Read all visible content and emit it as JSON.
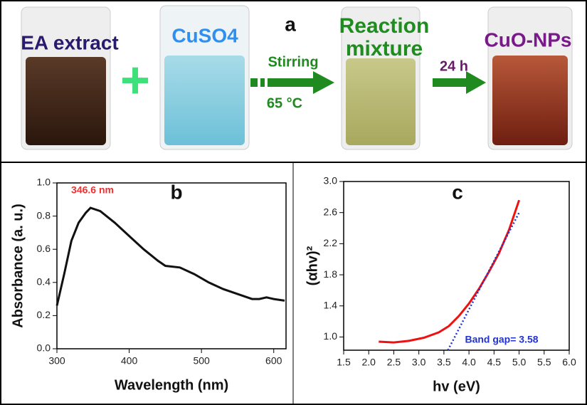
{
  "panel_a": {
    "title": "a",
    "labels": [
      "EA extract",
      "CuSO4",
      "Reaction",
      "mixture",
      "CuO-NPs"
    ],
    "plus": "+",
    "arrow1_top": "Stirring",
    "arrow1_bottom": "65 °C",
    "arrow2_top": "24 h"
  },
  "chart_data": [
    {
      "type": "line",
      "title": "b",
      "x_label": "Wavelength (nm)",
      "y_label": "Absorbance (a. u.)",
      "annotation": "346.6 nm",
      "annotation_color": "#f03030",
      "x": [
        300,
        310,
        320,
        330,
        340,
        346.6,
        360,
        380,
        400,
        420,
        440,
        450,
        470,
        490,
        510,
        530,
        550,
        570,
        580,
        590,
        600,
        615
      ],
      "series": [
        {
          "color": "#111111",
          "values": [
            0.26,
            0.45,
            0.65,
            0.76,
            0.82,
            0.85,
            0.83,
            0.76,
            0.68,
            0.6,
            0.53,
            0.5,
            0.49,
            0.45,
            0.4,
            0.36,
            0.33,
            0.3,
            0.3,
            0.31,
            0.3,
            0.29
          ]
        }
      ],
      "xlim": [
        300,
        617
      ],
      "ylim": [
        0,
        1
      ],
      "xticks": [
        300,
        400,
        500,
        600
      ],
      "yticks": [
        {
          "value": 0,
          "label": "0.0"
        },
        0.2,
        0.4,
        0.6,
        0.8,
        {
          "value": 1,
          "label": "1.0"
        }
      ]
    },
    {
      "type": "line",
      "title": "c",
      "x_label": "hv (eV)",
      "y_label": "(αhv)²",
      "annotation": "Band gap= 3.58",
      "annotation_color": "#2233cc",
      "x": [
        2.2,
        2.5,
        2.8,
        3.1,
        3.4,
        3.6,
        3.8,
        4.0,
        4.2,
        4.4,
        4.6,
        4.8,
        5.0
      ],
      "series": [
        {
          "color": "#ee1111",
          "values": [
            0.94,
            0.93,
            0.95,
            0.99,
            1.06,
            1.14,
            1.27,
            1.43,
            1.62,
            1.84,
            2.08,
            2.38,
            2.76
          ]
        },
        {
          "color": "#2233cc",
          "style": "dotted",
          "x": [
            3.58,
            5.0
          ],
          "values": [
            0.83,
            2.6
          ]
        }
      ],
      "xlim": [
        1.5,
        6.0
      ],
      "ylim": [
        0.83,
        3.0
      ],
      "xticks": [
        1.5,
        {
          "value": 2,
          "label": "2.0"
        },
        2.5,
        {
          "value": 3,
          "label": "3.0"
        },
        3.5,
        {
          "value": 4,
          "label": "4.0"
        },
        4.5,
        {
          "value": 5,
          "label": "5.0"
        },
        5.5,
        {
          "value": 6,
          "label": "6.0"
        }
      ],
      "yticks": [
        {
          "value": 1,
          "label": "1.0"
        },
        1.4,
        1.8,
        2.2,
        2.6,
        {
          "value": 3,
          "label": "3.0"
        }
      ]
    }
  ]
}
